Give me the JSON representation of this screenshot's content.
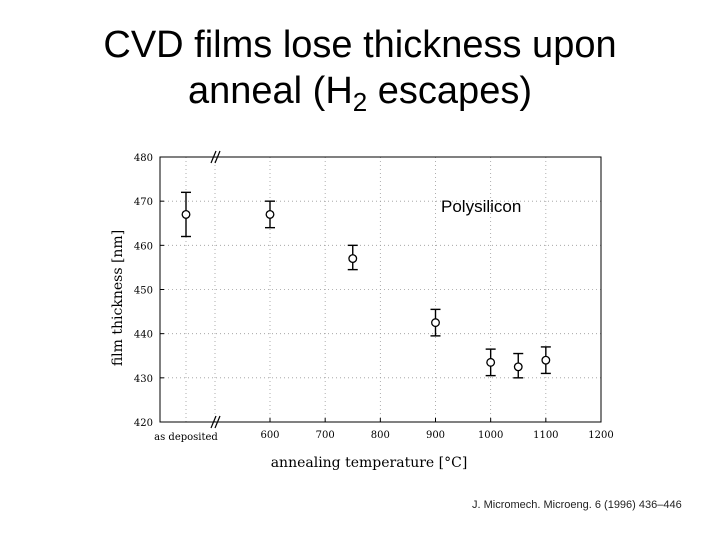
{
  "slide": {
    "title_line1": "CVD films lose thickness upon",
    "title_line2_prefix": "anneal (H",
    "title_line2_sub": "2",
    "title_line2_suffix": " escapes)",
    "citation": "J. Micromech. Microeng. 6 (1996) 436–446"
  },
  "chart_data": {
    "type": "scatter",
    "annotation": "Polysilicon",
    "xlabel": "annealing temperature [°C]",
    "ylabel": "film thickness [nm]",
    "xlim": [
      500,
      1200
    ],
    "ylim": [
      420,
      480
    ],
    "x_ticks": [
      600,
      700,
      800,
      900,
      1000,
      1100,
      1200
    ],
    "y_ticks": [
      420,
      430,
      440,
      450,
      460,
      470,
      480
    ],
    "x_extra_tick_label": "as deposited",
    "axis_break": true,
    "grid": true,
    "points": [
      {
        "label": "as deposited",
        "x": null,
        "y": 467,
        "err_low": 462,
        "err_high": 472
      },
      {
        "x": 600,
        "y": 467,
        "err_low": 464,
        "err_high": 470
      },
      {
        "x": 750,
        "y": 457,
        "err_low": 454.5,
        "err_high": 460
      },
      {
        "x": 900,
        "y": 442.5,
        "err_low": 439.5,
        "err_high": 445.5
      },
      {
        "x": 1000,
        "y": 433.5,
        "err_low": 430.5,
        "err_high": 436.5
      },
      {
        "x": 1050,
        "y": 432.5,
        "err_low": 430,
        "err_high": 435.5
      },
      {
        "x": 1100,
        "y": 434,
        "err_low": 431,
        "err_high": 437
      }
    ],
    "colors": {
      "marks": "#000000",
      "grid": "#9a9a9a"
    }
  }
}
